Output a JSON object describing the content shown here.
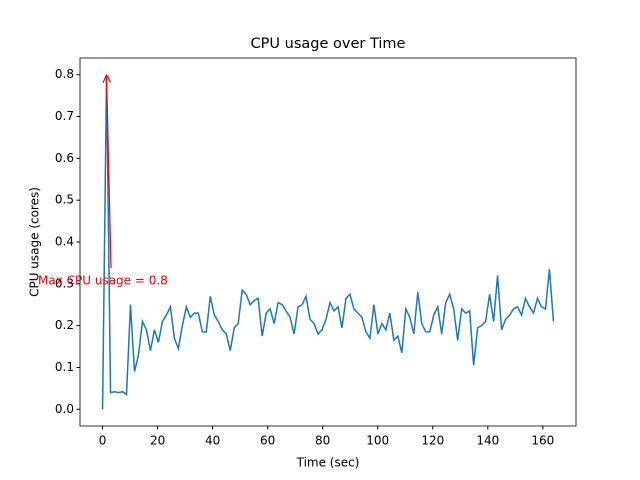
{
  "chart_data": {
    "type": "line",
    "title": "CPU usage over Time",
    "xlabel": "Time (sec)",
    "ylabel": "CPU usage (cores)",
    "annotation": {
      "text": "Max CPU usage = 0.8",
      "color": "#ff0000"
    },
    "x": [
      0,
      1.45,
      2.9,
      4.35,
      5.8,
      7.25,
      8.7,
      10.15,
      11.6,
      13.05,
      14.5,
      15.95,
      17.4,
      18.85,
      20.3,
      21.75,
      23.2,
      24.65,
      26.1,
      27.55,
      29,
      30.45,
      31.9,
      33.35,
      34.8,
      36.25,
      37.7,
      39.15,
      40.6,
      42.05,
      43.5,
      44.95,
      46.4,
      47.85,
      49.3,
      50.75,
      52.2,
      53.65,
      55.1,
      56.55,
      58,
      59.45,
      60.9,
      62.35,
      63.8,
      65.25,
      66.7,
      68.15,
      69.6,
      71.05,
      72.5,
      73.95,
      75.4,
      76.85,
      78.3,
      79.75,
      81.2,
      82.65,
      84.1,
      85.55,
      87,
      88.45,
      89.9,
      91.35,
      92.8,
      94.25,
      95.7,
      97.15,
      98.6,
      100.05,
      101.5,
      102.95,
      104.4,
      105.85,
      107.3,
      108.75,
      110.2,
      111.65,
      113.1,
      114.55,
      116,
      117.45,
      118.9,
      120.35,
      121.8,
      123.25,
      124.7,
      126.15,
      127.6,
      129.05,
      130.5,
      131.95,
      133.4,
      134.85,
      136.3,
      137.75,
      139.2,
      140.65,
      142.1,
      143.55,
      145,
      146.45,
      147.9,
      149.35,
      150.8,
      152.25,
      153.7,
      155.15,
      156.6,
      158.05,
      159.5,
      160.95,
      162.4,
      163.85
    ],
    "series": [
      {
        "name": "CPU usage",
        "color": "#1f77b4",
        "values": [
          0,
          0.8,
          0.04,
          0.042,
          0.04,
          0.042,
          0.035,
          0.25,
          0.09,
          0.13,
          0.21,
          0.19,
          0.14,
          0.19,
          0.16,
          0.21,
          0.225,
          0.245,
          0.17,
          0.145,
          0.2,
          0.245,
          0.22,
          0.23,
          0.23,
          0.185,
          0.185,
          0.27,
          0.225,
          0.21,
          0.19,
          0.18,
          0.14,
          0.195,
          0.205,
          0.285,
          0.275,
          0.25,
          0.26,
          0.265,
          0.175,
          0.23,
          0.24,
          0.205,
          0.255,
          0.25,
          0.235,
          0.22,
          0.18,
          0.245,
          0.25,
          0.27,
          0.215,
          0.205,
          0.18,
          0.19,
          0.215,
          0.255,
          0.235,
          0.245,
          0.195,
          0.265,
          0.275,
          0.24,
          0.23,
          0.22,
          0.185,
          0.17,
          0.25,
          0.18,
          0.205,
          0.19,
          0.23,
          0.165,
          0.175,
          0.135,
          0.24,
          0.22,
          0.18,
          0.28,
          0.205,
          0.185,
          0.185,
          0.225,
          0.245,
          0.18,
          0.255,
          0.275,
          0.24,
          0.165,
          0.24,
          0.23,
          0.235,
          0.105,
          0.195,
          0.2,
          0.21,
          0.275,
          0.21,
          0.32,
          0.19,
          0.215,
          0.225,
          0.24,
          0.245,
          0.225,
          0.265,
          0.245,
          0.23,
          0.265,
          0.245,
          0.24,
          0.335,
          0.21
        ]
      }
    ],
    "xlim": [
      -8.2,
      172.05
    ],
    "ylim": [
      -0.04,
      0.84
    ],
    "xticks": [
      0,
      20,
      40,
      60,
      80,
      100,
      120,
      140,
      160
    ],
    "yticks": [
      {
        "value": 0,
        "label": "0.0"
      },
      0.1,
      0.2,
      0.3,
      0.4,
      0.5,
      0.6,
      0.7,
      0.8
    ]
  }
}
